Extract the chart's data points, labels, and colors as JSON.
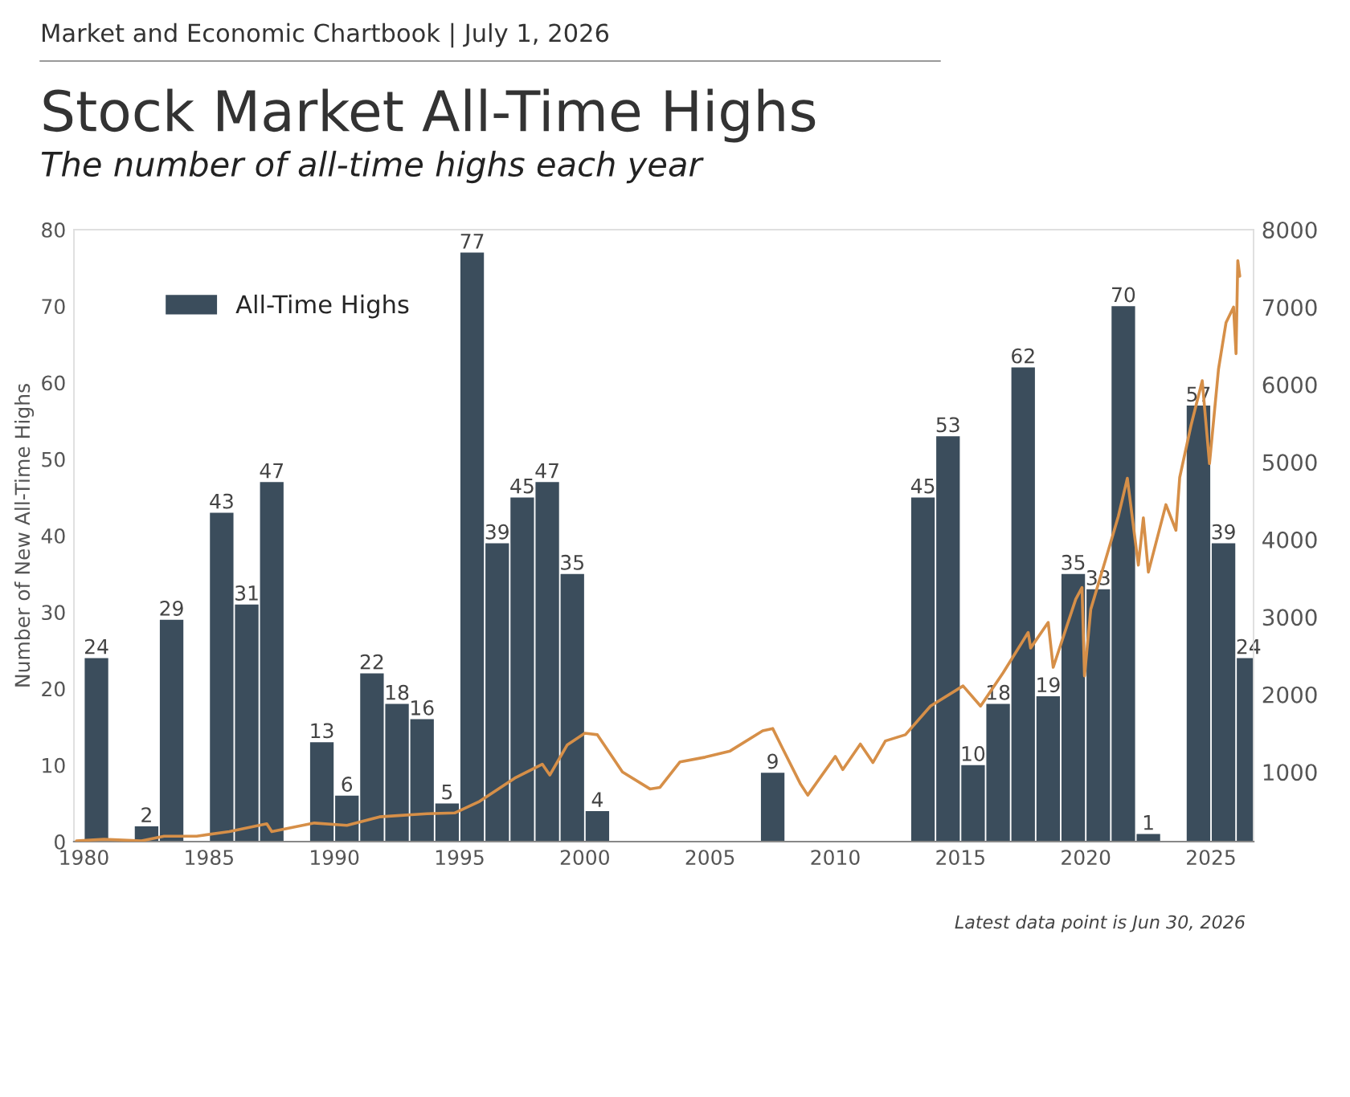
{
  "chart_data": {
    "type": "bar",
    "title": "Stock Market All-Time Highs",
    "subtitle": "The number of all-time highs each year",
    "annotations": [
      "Market and Economic Chartbook | July 1, 2026",
      "Latest data point is Jun 30, 2026"
    ],
    "ylabel": "Number of New All-Time Highs",
    "xlim": [
      1979.6,
      2026.7
    ],
    "xticks": [
      1980,
      1985,
      1990,
      1995,
      2000,
      2005,
      2010,
      2015,
      2020,
      2025
    ],
    "ylim": [
      0,
      80
    ],
    "yticks": [
      0,
      10,
      20,
      30,
      40,
      50,
      60,
      70,
      80
    ],
    "y2lim": [
      100,
      8000
    ],
    "y2ticks": [
      1000,
      2000,
      3000,
      4000,
      5000,
      6000,
      7000,
      8000
    ],
    "legend": "top left",
    "grid": false,
    "series": [
      {
        "name": "All-Time Highs",
        "color": "#3b4d5c",
        "x": [
          1980.5,
          1982.5,
          1983.5,
          1985.5,
          1986.5,
          1987.5,
          1989.5,
          1990.5,
          1991.5,
          1992.5,
          1993.5,
          1994.5,
          1995.5,
          1996.5,
          1997.5,
          1998.5,
          1999.5,
          2000.5,
          2007.5,
          2013.5,
          2014.5,
          2015.5,
          2016.5,
          2017.5,
          2018.5,
          2019.5,
          2020.5,
          2021.5,
          2022.5,
          2024.5,
          2025.5,
          2026.5
        ],
        "values": [
          24,
          2,
          29,
          43,
          31,
          47,
          13,
          6,
          22,
          18,
          16,
          5,
          77,
          39,
          45,
          47,
          35,
          4,
          9,
          45,
          53,
          10,
          18,
          62,
          19,
          35,
          33,
          70,
          1,
          57,
          39,
          24
        ],
        "value_labels": [
          "24",
          "2",
          "29",
          "43",
          "31",
          "47",
          "13",
          "6",
          "22",
          "18",
          "16",
          "5",
          "77",
          "39",
          "45",
          "47",
          "35",
          "4",
          "9",
          "45",
          "53",
          "10",
          "18",
          "62",
          "19",
          "35",
          "33",
          "70",
          "1",
          "57",
          "39",
          "24"
        ]
      },
      {
        "type": "line",
        "axis": "y2",
        "color": "#d68f48",
        "line_style": "solid",
        "x": [
          1979.7,
          1980.8,
          1982.3,
          1983.2,
          1984.5,
          1985.8,
          1987.3,
          1987.5,
          1989.2,
          1990.5,
          1991.8,
          1993.7,
          1994.8,
          1995.8,
          1997.2,
          1998.3,
          1998.6,
          1999.3,
          2000.0,
          2000.5,
          2001.5,
          2002.6,
          2003.0,
          2003.8,
          2004.8,
          2005.8,
          2007.1,
          2007.5,
          2007.9,
          2008.6,
          2008.9,
          2010.0,
          2010.3,
          2011.0,
          2011.5,
          2012.0,
          2012.8,
          2013.8,
          2015.1,
          2015.8,
          2016.7,
          2017.7,
          2017.8,
          2018.5,
          2018.7,
          2019.6,
          2019.85,
          2019.95,
          2020.2,
          2020.8,
          2021.3,
          2021.66,
          2022.1,
          2022.3,
          2022.5,
          2023.2,
          2023.6,
          2023.75,
          2024.2,
          2024.65,
          2024.94,
          2025.3,
          2025.6,
          2025.9,
          2026.0,
          2026.07,
          2026.15
        ],
        "values": [
          110,
          130,
          110,
          170,
          170,
          230,
          330,
          230,
          340,
          310,
          420,
          460,
          470,
          620,
          920,
          1100,
          960,
          1350,
          1500,
          1480,
          1000,
          780,
          800,
          1130,
          1190,
          1270,
          1530,
          1560,
          1300,
          850,
          700,
          1200,
          1030,
          1360,
          1120,
          1400,
          1480,
          1850,
          2110,
          1850,
          2280,
          2800,
          2600,
          2930,
          2350,
          3230,
          3380,
          2240,
          3100,
          3750,
          4300,
          4790,
          3670,
          4280,
          3580,
          4450,
          4120,
          4800,
          5470,
          6050,
          4980,
          6200,
          6800,
          7000,
          6400,
          7600,
          7400
        ]
      }
    ]
  }
}
